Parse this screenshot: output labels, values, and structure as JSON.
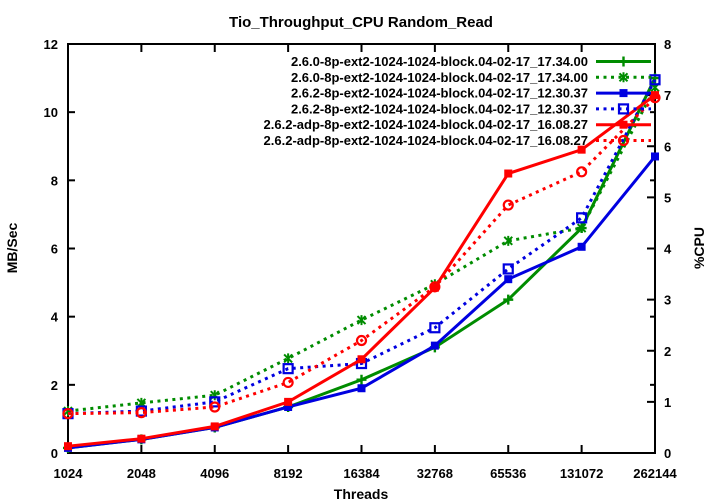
{
  "chart_data": {
    "type": "line",
    "title": "Tio_Throughput_CPU Random_Read",
    "xlabel": "Threads",
    "ylabel_left": "MB/Sec",
    "ylabel_right": "%CPU",
    "x_categories": [
      "1024",
      "2048",
      "4096",
      "8192",
      "16384",
      "32768",
      "65536",
      "131072",
      "262144"
    ],
    "ylim_left": [
      0,
      12
    ],
    "ylim_right": [
      0,
      8
    ],
    "left_ticks": [
      0,
      2,
      4,
      6,
      8,
      10,
      12
    ],
    "right_ticks": [
      0,
      1,
      2,
      3,
      4,
      5,
      6,
      7,
      8
    ],
    "grid": false,
    "legend_position": "top-right-inside",
    "series": [
      {
        "name": "2.6.0-8p-ext2-1024-1024-block.04-02-17_17.34.00",
        "color": "#008C00",
        "axis": "left",
        "line": "solid",
        "marker": "plus",
        "values": [
          0.15,
          0.4,
          0.75,
          1.35,
          2.15,
          3.1,
          4.5,
          6.6,
          11.0
        ]
      },
      {
        "name": "2.6.0-8p-ext2-1024-1024-block.04-02-17_17.34.00",
        "color": "#008C00",
        "axis": "right",
        "line": "dotted",
        "marker": "asterisk",
        "values": [
          0.82,
          0.98,
          1.13,
          1.85,
          2.6,
          3.3,
          4.15,
          4.4,
          7.15
        ]
      },
      {
        "name": "2.6.2-8p-ext2-1024-1024-block.04-02-17_12.30.37",
        "color": "#0000E0",
        "axis": "left",
        "line": "solid",
        "marker": "square",
        "values": [
          0.15,
          0.4,
          0.75,
          1.35,
          1.9,
          3.15,
          5.1,
          6.05,
          8.7
        ]
      },
      {
        "name": "2.6.2-8p-ext2-1024-1024-block.04-02-17_12.30.37",
        "color": "#0000E0",
        "axis": "right",
        "line": "dotted",
        "marker": "square-open",
        "values": [
          0.77,
          0.82,
          1.0,
          1.65,
          1.75,
          2.45,
          3.6,
          4.6,
          7.3
        ]
      },
      {
        "name": "2.6.2-adp-8p-ext2-1024-1024-block.04-02-17_16.08.27",
        "color": "#FF0000",
        "axis": "left",
        "line": "solid",
        "marker": "square",
        "values": [
          0.2,
          0.42,
          0.78,
          1.5,
          2.75,
          4.85,
          8.2,
          8.9,
          10.5
        ]
      },
      {
        "name": "2.6.2-adp-8p-ext2-1024-1024-block.04-02-17_16.08.27",
        "color": "#FF0000",
        "axis": "right",
        "line": "dotted",
        "marker": "circle-open",
        "values": [
          0.77,
          0.79,
          0.9,
          1.38,
          2.2,
          3.25,
          4.85,
          5.5,
          6.95
        ]
      }
    ]
  },
  "colors": {
    "axis": "#000000",
    "background": "#FFFFFF",
    "green_series": "#008C00",
    "blue_series": "#0000E0",
    "red_series": "#FF0000"
  }
}
